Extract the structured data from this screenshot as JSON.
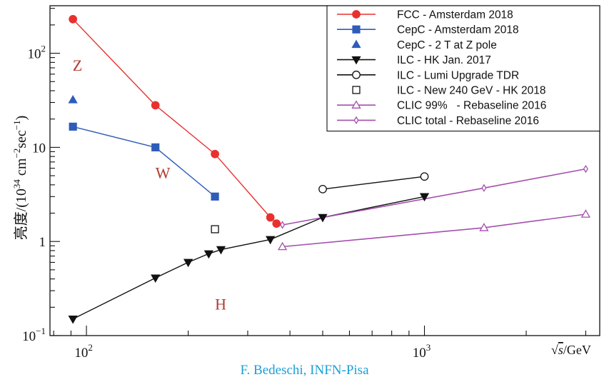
{
  "chart_data": {
    "type": "line",
    "x_scale": "log",
    "y_scale": "log",
    "xlim": [
      78,
      3300
    ],
    "ylim": [
      0.1,
      320
    ],
    "xlabel_prefix": "√",
    "xlabel_var": "s",
    "xlabel_suffix": "/GeV",
    "ylabel_text": "亮度/(10",
    "ylabel_exp1": "34",
    "ylabel_mid": " cm",
    "ylabel_exp2": "−2",
    "ylabel_mid2": "sec",
    "ylabel_exp3": "−1",
    "ylabel_end": ")",
    "x_ticks": [
      {
        "value": 100,
        "base": "10",
        "exp": "2"
      },
      {
        "value": 1000,
        "base": "10",
        "exp": "3"
      }
    ],
    "y_ticks": [
      {
        "value": 0.1,
        "base": "10",
        "exp": "−1"
      },
      {
        "value": 1,
        "text": "1"
      },
      {
        "value": 10,
        "text": "10"
      },
      {
        "value": 100,
        "base": "10",
        "exp": "2"
      }
    ],
    "annotations": [
      {
        "text": "Z",
        "x": 91,
        "y": 65
      },
      {
        "text": "W",
        "x": 160,
        "y": 4.7
      },
      {
        "text": "H",
        "x": 240,
        "y": 0.19
      }
    ],
    "series": [
      {
        "name": "FCC - Amsterdam 2018",
        "color": "#e8312f",
        "marker": "circle",
        "filled": true,
        "line": true,
        "points": [
          [
            91.2,
            230
          ],
          [
            160,
            28
          ],
          [
            240,
            8.5
          ],
          [
            350,
            1.8
          ],
          [
            365,
            1.55
          ]
        ]
      },
      {
        "name": "CepC - Amsterdam 2018",
        "color": "#2e5cb8",
        "marker": "square",
        "filled": true,
        "line": true,
        "points": [
          [
            91.2,
            16.6
          ],
          [
            160,
            10
          ],
          [
            240,
            3.0
          ]
        ]
      },
      {
        "name": "CepC - 2 T at Z pole",
        "color": "#2e5cb8",
        "marker": "triangle",
        "filled": true,
        "line": false,
        "points": [
          [
            91.2,
            32
          ]
        ]
      },
      {
        "name": "ILC - HK Jan. 2017",
        "color": "#111111",
        "marker": "triangle-down",
        "filled": true,
        "line": true,
        "points": [
          [
            91.2,
            0.15
          ],
          [
            160,
            0.41
          ],
          [
            200,
            0.6
          ],
          [
            230,
            0.74
          ],
          [
            250,
            0.82
          ],
          [
            350,
            1.05
          ],
          [
            500,
            1.8
          ],
          [
            1000,
            3.0
          ]
        ]
      },
      {
        "name": "ILC - Lumi Upgrade TDR",
        "color": "#111111",
        "marker": "circle",
        "filled": false,
        "line": true,
        "points": [
          [
            500,
            3.6
          ],
          [
            1000,
            4.9
          ]
        ]
      },
      {
        "name": "ILC - New 240 GeV - HK 2018",
        "color": "#111111",
        "marker": "square",
        "filled": false,
        "line": false,
        "points": [
          [
            240,
            1.35
          ]
        ]
      },
      {
        "name": "CLIC 99%   - Rebaseline 2016",
        "color": "#a44fad",
        "marker": "triangle",
        "filled": false,
        "line": true,
        "points": [
          [
            380,
            0.88
          ],
          [
            1500,
            1.4
          ],
          [
            3000,
            1.95
          ]
        ]
      },
      {
        "name": "CLIC total - Rebaseline 2016",
        "color": "#a44fad",
        "marker": "diamond",
        "filled": false,
        "line": true,
        "points": [
          [
            380,
            1.5
          ],
          [
            1500,
            3.7
          ],
          [
            3000,
            5.9
          ]
        ]
      }
    ]
  },
  "credit": "F. Bedeschi, INFN-Pisa"
}
